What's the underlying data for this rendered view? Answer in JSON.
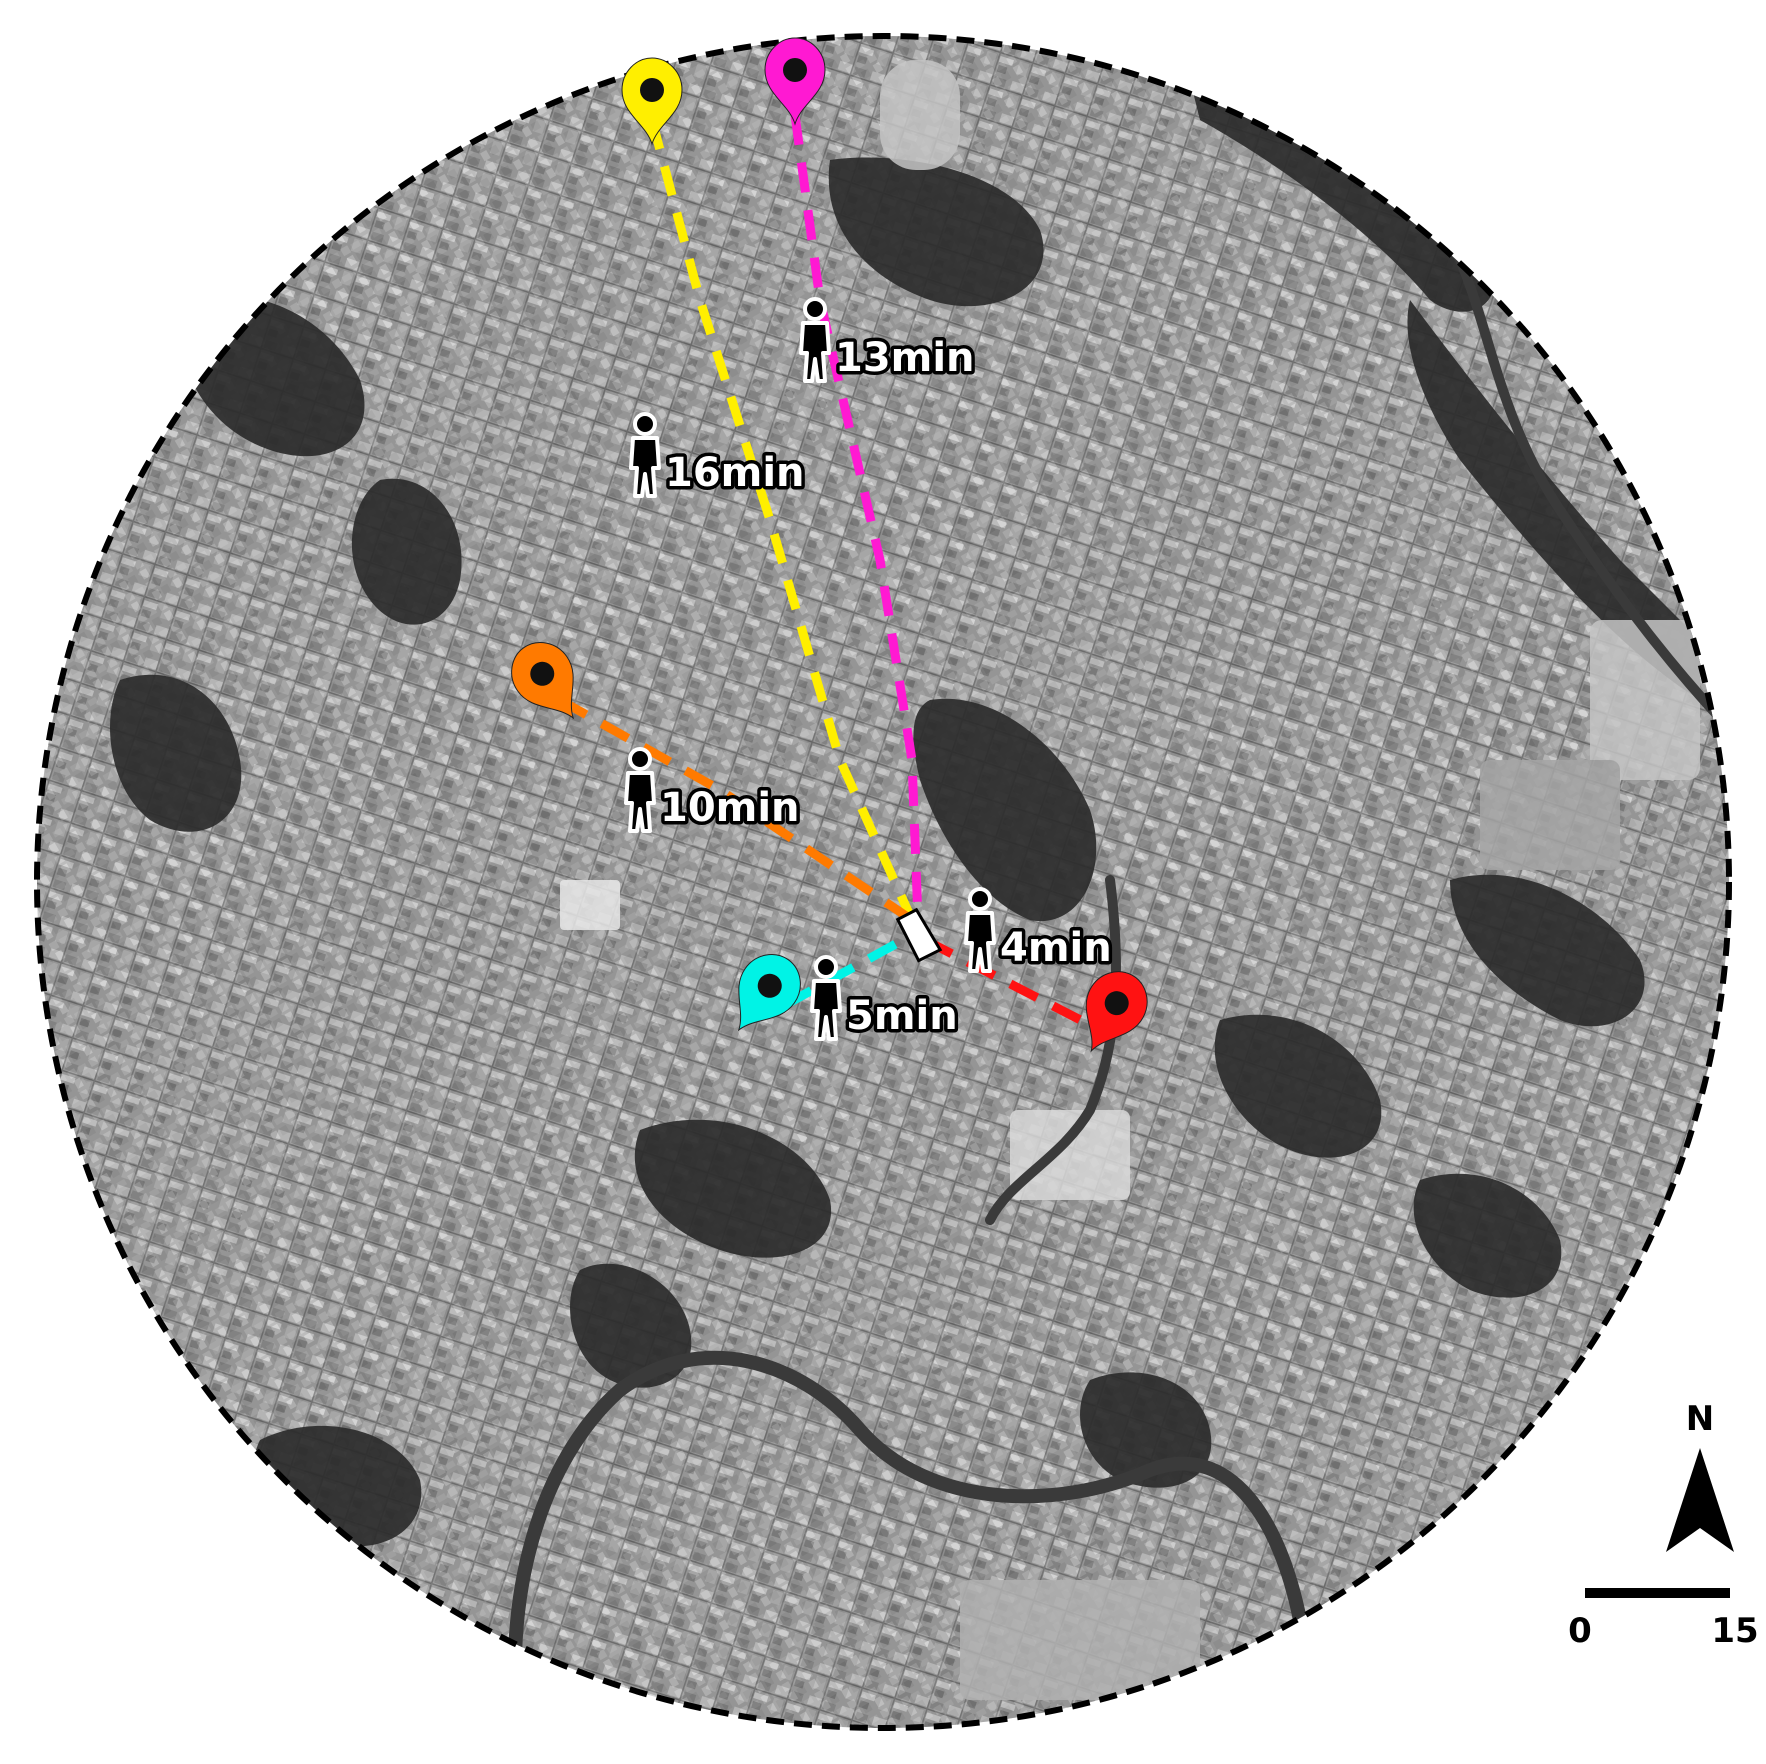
{
  "map": {
    "base": "grayscale satellite imagery of a dense urban area",
    "boundary_style": "dashed circle",
    "colors": {
      "boundary": "#000000",
      "land_light": "#9b9b9b",
      "land_dark": "#2a2a2a",
      "river": "#3a3a3a"
    }
  },
  "destination": {
    "icon": "building-marker-icon"
  },
  "routes": [
    {
      "id": "yellow",
      "color": "#ffef00",
      "time": "16min",
      "icon": "location-pin-icon"
    },
    {
      "id": "magenta",
      "color": "#ff19d2",
      "time": "13min",
      "icon": "location-pin-icon"
    },
    {
      "id": "orange",
      "color": "#ff7a00",
      "time": "10min",
      "icon": "location-pin-icon"
    },
    {
      "id": "cyan",
      "color": "#00f3e6",
      "time": "5min",
      "icon": "location-pin-icon"
    },
    {
      "id": "red",
      "color": "#ff1212",
      "time": "4min",
      "icon": "location-pin-icon"
    }
  ],
  "walker_icon": "pedestrian-icon",
  "north_arrow": {
    "label": "N",
    "icon": "north-arrow-icon"
  },
  "scale_bar": {
    "start_label": "0",
    "end_label": "15"
  }
}
